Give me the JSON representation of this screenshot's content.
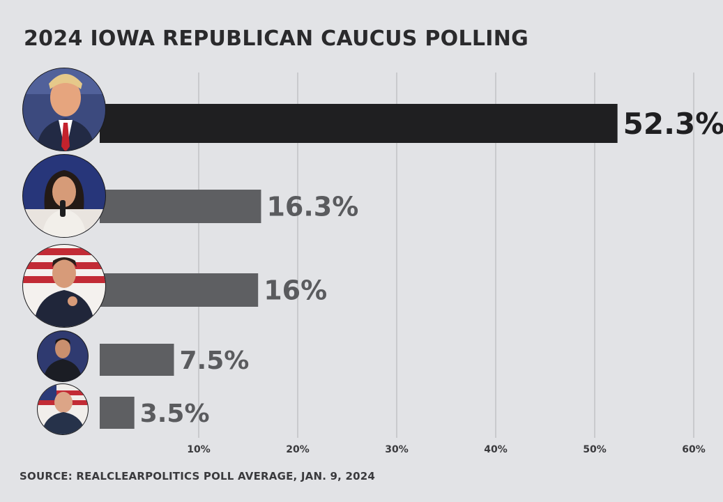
{
  "title": "2024 IOWA REPUBLICAN CAUCUS POLLING",
  "source": "SOURCE: REALCLEARPOLITICS POLL AVERAGE, JAN. 9, 2024",
  "chart_data": {
    "type": "bar",
    "orientation": "horizontal",
    "title": "2024 IOWA REPUBLICAN CAUCUS POLLING",
    "xlabel": "",
    "ylabel": "",
    "xlim": [
      0,
      60
    ],
    "xticks": [
      "10%",
      "20%",
      "30%",
      "40%",
      "50%",
      "60%"
    ],
    "grid": true,
    "values": [
      52.3,
      16.3,
      16,
      7.5,
      3.5
    ],
    "value_labels": [
      "52.3%",
      "16.3%",
      "16%",
      "7.5%",
      "3.5%"
    ],
    "bar_colors": [
      "#1f1f21",
      "#5e5f62",
      "#5e5f62",
      "#5e5f62",
      "#5e5f62"
    ]
  }
}
